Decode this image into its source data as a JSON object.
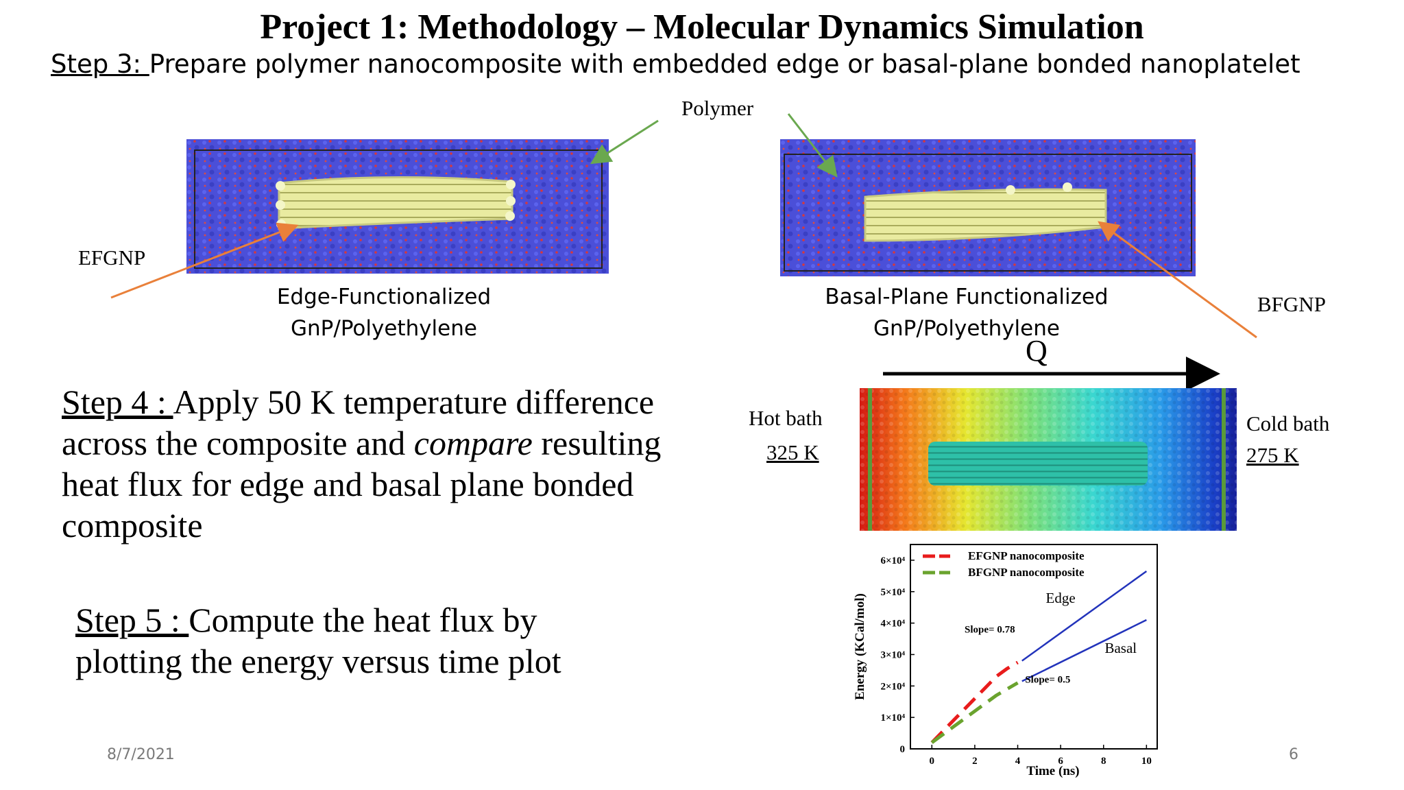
{
  "slide": {
    "title": "Project 1: Methodology – Molecular Dynamics Simulation",
    "step3_prefix": "Step 3: ",
    "step3_text": "Prepare polymer nanocomposite with embedded edge or basal-plane bonded nanoplatelet",
    "polymer_label": "Polymer",
    "efgnp_label": "EFGNP",
    "bfgnp_label": "BFGNP",
    "caption_left_line1": "Edge-Functionalized",
    "caption_left_line2": "GnP/Polyethylene",
    "caption_right_line1": "Basal-Plane Functionalized",
    "caption_right_line2": "GnP/Polyethylene",
    "q_label": "Q",
    "hot_bath_label": "Hot bath",
    "hot_bath_temp": "325 K",
    "cold_bath_label": "Cold bath",
    "cold_bath_temp": "275 K",
    "step4_prefix": "Step 4 : ",
    "step4_line1": "Apply 50 K temperature difference",
    "step4_line2_a": "across the composite and ",
    "step4_line2_em": "compare",
    "step4_line2_b": " resulting",
    "step4_line3": "heat flux for edge and basal plane bonded",
    "step4_line4": "composite",
    "step5_prefix": "Step 5 : ",
    "step5_line1": "Compute the heat flux by",
    "step5_line2": "plotting the energy versus time plot",
    "footer_date": "8/7/2021",
    "footer_page": "6"
  },
  "colors": {
    "arrow_green": "#6aa84f",
    "arrow_orange": "#e9803a",
    "polymer_blue": "#4b4fd8",
    "platelet_yellow": "#e9eba0",
    "efgnp_red": "#e81c1c",
    "bfgnp_green": "#6aa32e",
    "fit_line_blue": "#2233bb"
  },
  "chart_data": {
    "type": "line",
    "xlabel": "Time (ns)",
    "ylabel": "Energy (KCal/mol)",
    "xlim": [
      -1,
      10.5
    ],
    "ylim": [
      0,
      65000
    ],
    "x_ticks": [
      "0",
      "2",
      "4",
      "6",
      "8",
      "10"
    ],
    "y_ticks": [
      "0",
      "1×10⁴",
      "2×10⁴",
      "3×10⁴",
      "4×10⁴",
      "5×10⁴",
      "6×10⁴"
    ],
    "legend_position": "top-left",
    "series": [
      {
        "name": "EFGNP nanocomposite",
        "style": "dashed",
        "color": "#e81c1c",
        "x": [
          0,
          0.5,
          1,
          1.5,
          2,
          2.5,
          3,
          3.5,
          4
        ],
        "y": [
          2000,
          5500,
          9000,
          12500,
          16000,
          19500,
          23000,
          25500,
          27500
        ]
      },
      {
        "name": "BFGNP nanocomposite",
        "style": "dashed",
        "color": "#6aa32e",
        "x": [
          0,
          0.5,
          1,
          1.5,
          2,
          2.5,
          3,
          3.5,
          4
        ],
        "y": [
          2000,
          4500,
          7000,
          9500,
          12000,
          14500,
          17000,
          19000,
          21000
        ]
      },
      {
        "name": "Edge fit",
        "style": "solid",
        "color": "#2233bb",
        "x": [
          4.2,
          10
        ],
        "y": [
          28000,
          56500
        ]
      },
      {
        "name": "Basal fit",
        "style": "solid",
        "color": "#2233bb",
        "x": [
          4.2,
          10
        ],
        "y": [
          21500,
          41000
        ]
      }
    ],
    "annotations": [
      {
        "text": "Edge",
        "x": 6.0,
        "y": 46500
      },
      {
        "text": "Basal",
        "x": 8.8,
        "y": 30500
      },
      {
        "text": "Slope= 0.78",
        "x": 2.7,
        "y": 37000
      },
      {
        "text": "Slope= 0.5",
        "x": 5.4,
        "y": 21000
      }
    ]
  }
}
